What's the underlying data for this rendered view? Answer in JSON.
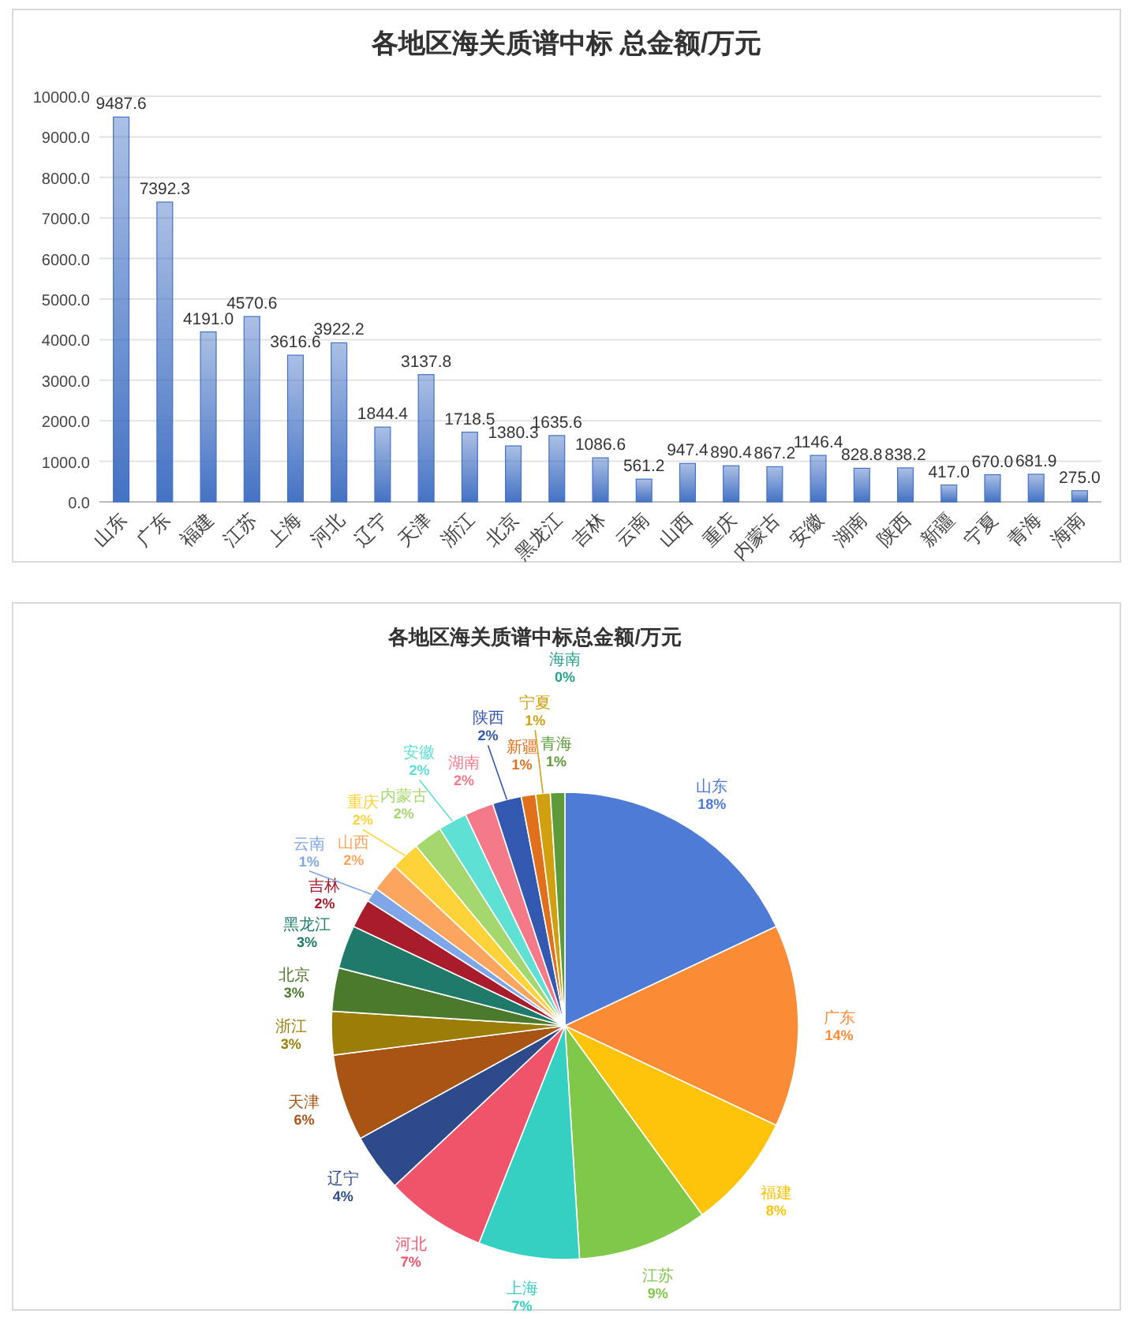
{
  "chart_data": [
    {
      "type": "bar",
      "title": "各地区海关质谱中标 总金额/万元",
      "categories": [
        "山东",
        "广东",
        "福建",
        "江苏",
        "上海",
        "河北",
        "辽宁",
        "天津",
        "浙江",
        "北京",
        "黑龙江",
        "吉林",
        "云南",
        "山西",
        "重庆",
        "内蒙古",
        "安徽",
        "湖南",
        "陕西",
        "新疆",
        "宁夏",
        "青海",
        "海南"
      ],
      "values": [
        9487.6,
        7392.3,
        4191.0,
        4570.6,
        3616.6,
        3922.2,
        1844.4,
        3137.8,
        1718.5,
        1380.3,
        1635.6,
        1086.6,
        561.2,
        947.4,
        890.4,
        867.2,
        1146.4,
        828.8,
        838.2,
        417.0,
        670.0,
        681.9,
        275.0
      ],
      "value_labels": [
        "9487.6",
        "7392.3",
        "4191.0",
        "4570.6",
        "3616.6",
        "3922.2",
        "1844.4",
        "3137.8",
        "1718.5",
        "1380.3",
        "1635.6",
        "1086.6",
        "561.2",
        "947.4",
        "890.4",
        "867.2",
        "1146.4",
        "828.8",
        "838.2",
        "417.0",
        "670.0",
        "681.9",
        "275.0"
      ],
      "color": "#4472c4",
      "ylim": [
        0,
        10000
      ],
      "yticks": [
        {
          "value": 0,
          "label": "0.0"
        },
        {
          "value": 1000,
          "label": "1000.0"
        },
        {
          "value": 2000,
          "label": "2000.0"
        },
        {
          "value": 3000,
          "label": "3000.0"
        },
        {
          "value": 4000,
          "label": "4000.0"
        },
        {
          "value": 5000,
          "label": "5000.0"
        },
        {
          "value": 6000,
          "label": "6000.0"
        },
        {
          "value": 7000,
          "label": "7000.0"
        },
        {
          "value": 8000,
          "label": "8000.0"
        },
        {
          "value": 9000,
          "label": "9000.0"
        },
        {
          "value": 10000,
          "label": "10000.0"
        }
      ],
      "grid": "y"
    },
    {
      "type": "pie",
      "title": "各地区海关质谱中标总金额/万元",
      "categories": [
        "山东",
        "广东",
        "福建",
        "江苏",
        "上海",
        "河北",
        "辽宁",
        "天津",
        "浙江",
        "北京",
        "黑龙江",
        "吉林",
        "云南",
        "山西",
        "重庆",
        "内蒙古",
        "安徽",
        "湖南",
        "陕西",
        "新疆",
        "宁夏",
        "青海",
        "海南"
      ],
      "values": [
        18,
        14,
        8,
        9,
        7,
        7,
        4,
        6,
        3,
        3,
        3,
        2,
        1,
        2,
        2,
        2,
        2,
        2,
        2,
        1,
        1,
        1,
        0
      ],
      "colors": [
        "#4e7bd6",
        "#fb8c36",
        "#fdc40b",
        "#80c84a",
        "#36d0c2",
        "#f0546a",
        "#2e4a8a",
        "#a85414",
        "#9c7d08",
        "#4c7a2c",
        "#1f7a6a",
        "#a81c2c",
        "#7ea6e8",
        "#fca55e",
        "#fed33a",
        "#a4d86e",
        "#5ee0d4",
        "#f47a8a",
        "#3358b0",
        "#e0701c",
        "#d0a010",
        "#5e9a3a",
        "#2aa090"
      ],
      "value_labels": [
        "18%",
        "14%",
        "8%",
        "9%",
        "7%",
        "7%",
        "4%",
        "6%",
        "3%",
        "3%",
        "3%",
        "2%",
        "1%",
        "2%",
        "2%",
        "2%",
        "2%",
        "2%",
        "2%",
        "1%",
        "1%",
        "1%",
        "0%"
      ]
    }
  ]
}
